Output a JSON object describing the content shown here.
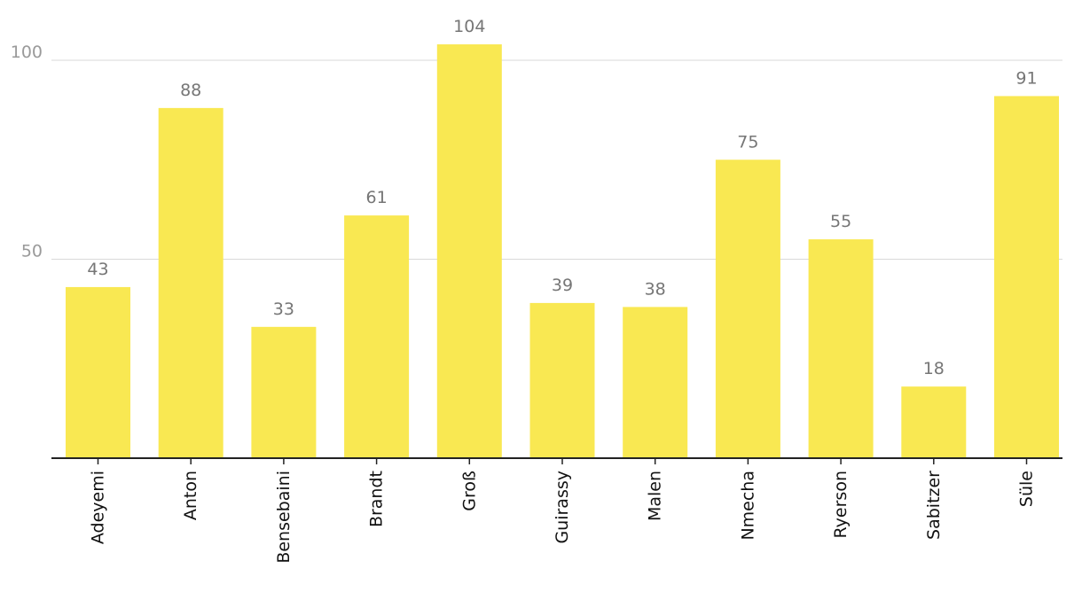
{
  "chart_data": {
    "type": "bar",
    "categories": [
      "Adeyemi",
      "Anton",
      "Bensebaini",
      "Brandt",
      "Groß",
      "Guirassy",
      "Malen",
      "Nmecha",
      "Ryerson",
      "Sabitzer",
      "Süle"
    ],
    "values": [
      43,
      88,
      33,
      61,
      104,
      39,
      38,
      75,
      55,
      18,
      91
    ],
    "ylim": [
      0,
      110
    ],
    "yticks": [
      50,
      100
    ],
    "grid": true,
    "bar_color": "#f9e852",
    "title": "",
    "xlabel": "",
    "ylabel": ""
  }
}
